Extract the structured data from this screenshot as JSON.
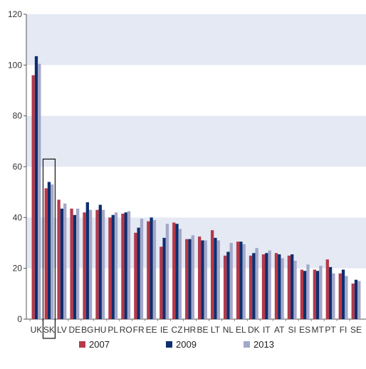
{
  "chart_data": {
    "type": "bar",
    "title": "",
    "xlabel": "",
    "ylabel": "",
    "ylim": [
      0,
      120
    ],
    "yticks": [
      0,
      20,
      40,
      60,
      80,
      100,
      120
    ],
    "grid": "alternating horizontal bands",
    "legend_position": "bottom",
    "band_color": "#e4e9f3",
    "highlighted_category": "SK",
    "categories": [
      "UK",
      "SK",
      "LV",
      "DE",
      "BG",
      "HU",
      "PL",
      "RO",
      "FR",
      "EE",
      "IE",
      "CZ",
      "HR",
      "BE",
      "LT",
      "NL",
      "EL",
      "DK",
      "IT",
      "AT",
      "SI",
      "ES",
      "MT",
      "PT",
      "FI",
      "SE"
    ],
    "series": [
      {
        "name": "2007",
        "color": "#b5394a",
        "values": [
          96,
          51.5,
          47,
          43.5,
          42,
          43,
          40,
          41.5,
          34,
          38.5,
          28.5,
          38,
          31.5,
          32.5,
          35,
          25,
          30.5,
          25,
          25.5,
          26,
          25,
          19.5,
          19.5,
          23.5,
          18,
          14
        ]
      },
      {
        "name": "2009",
        "color": "#0e2e6e",
        "values": [
          103.5,
          54,
          43.5,
          41,
          46,
          45,
          41,
          42,
          36,
          40,
          32,
          37.5,
          31.5,
          31,
          32,
          26.5,
          30.5,
          26,
          26,
          25.5,
          25.5,
          19,
          19,
          20.5,
          19.5,
          15.5
        ]
      },
      {
        "name": "2013",
        "color": "#a3a7c8",
        "values": [
          100.5,
          53,
          45.5,
          43.5,
          43,
          43,
          42,
          42.5,
          39.5,
          39,
          37.5,
          35.5,
          33,
          31,
          31,
          30,
          29.5,
          28,
          27,
          24,
          23,
          21.5,
          21,
          18,
          17,
          15
        ]
      }
    ]
  }
}
